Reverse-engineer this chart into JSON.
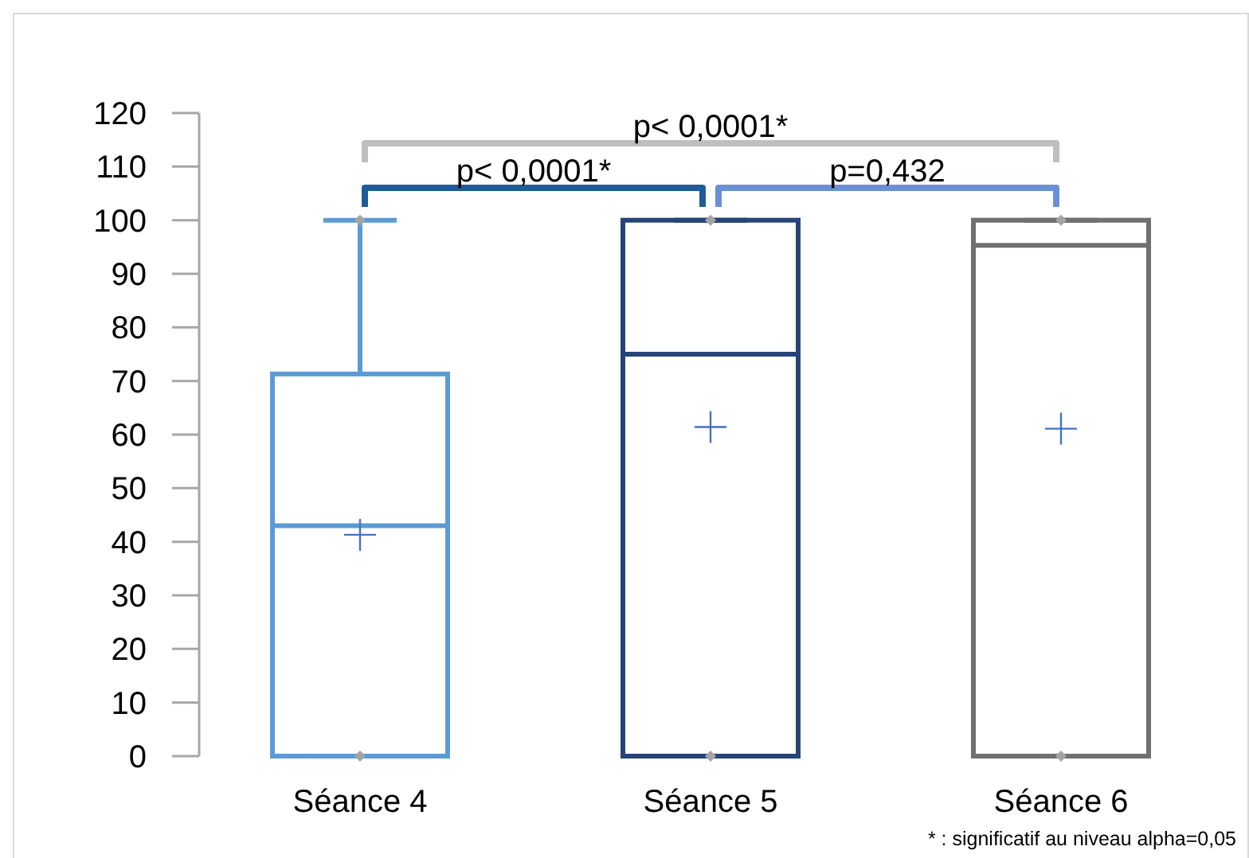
{
  "chart_data": {
    "type": "box",
    "categories": [
      "Séance 4",
      "Séance 5",
      "Séance 6"
    ],
    "colors": [
      "#5b9bd5",
      "#264478",
      "#707070"
    ],
    "boxes": [
      {
        "low": 0,
        "q1": 0,
        "median": 43,
        "q3": 71.3,
        "high": 100,
        "mean": 41.3
      },
      {
        "low": 0,
        "q1": 0,
        "median": 75,
        "q3": 100,
        "high": 100,
        "mean": 61.4
      },
      {
        "low": 0,
        "q1": 0,
        "median": 95.3,
        "q3": 100,
        "high": 100,
        "mean": 61.1
      }
    ],
    "series": [
      {
        "type": "scatter",
        "color": "#a5a5a5",
        "x": [
          "Séance 4",
          "Séance 5",
          "Séance 6"
        ],
        "values": [
          100,
          100,
          100
        ]
      },
      {
        "type": "scatter",
        "color": "#a5a5a5",
        "x": [
          "Séance 4",
          "Séance 5",
          "Séance 6"
        ],
        "values": [
          0,
          0,
          0
        ]
      }
    ],
    "marker": "diamond",
    "ylim": [
      0,
      120
    ],
    "yticks": [
      0,
      10,
      20,
      30,
      40,
      50,
      60,
      70,
      80,
      90,
      100,
      110,
      120
    ],
    "annotations": [
      "p< 0,0001*",
      "p=0,432",
      "p< 0,0001*",
      "* : significatif au niveau alpha=0,05"
    ]
  }
}
